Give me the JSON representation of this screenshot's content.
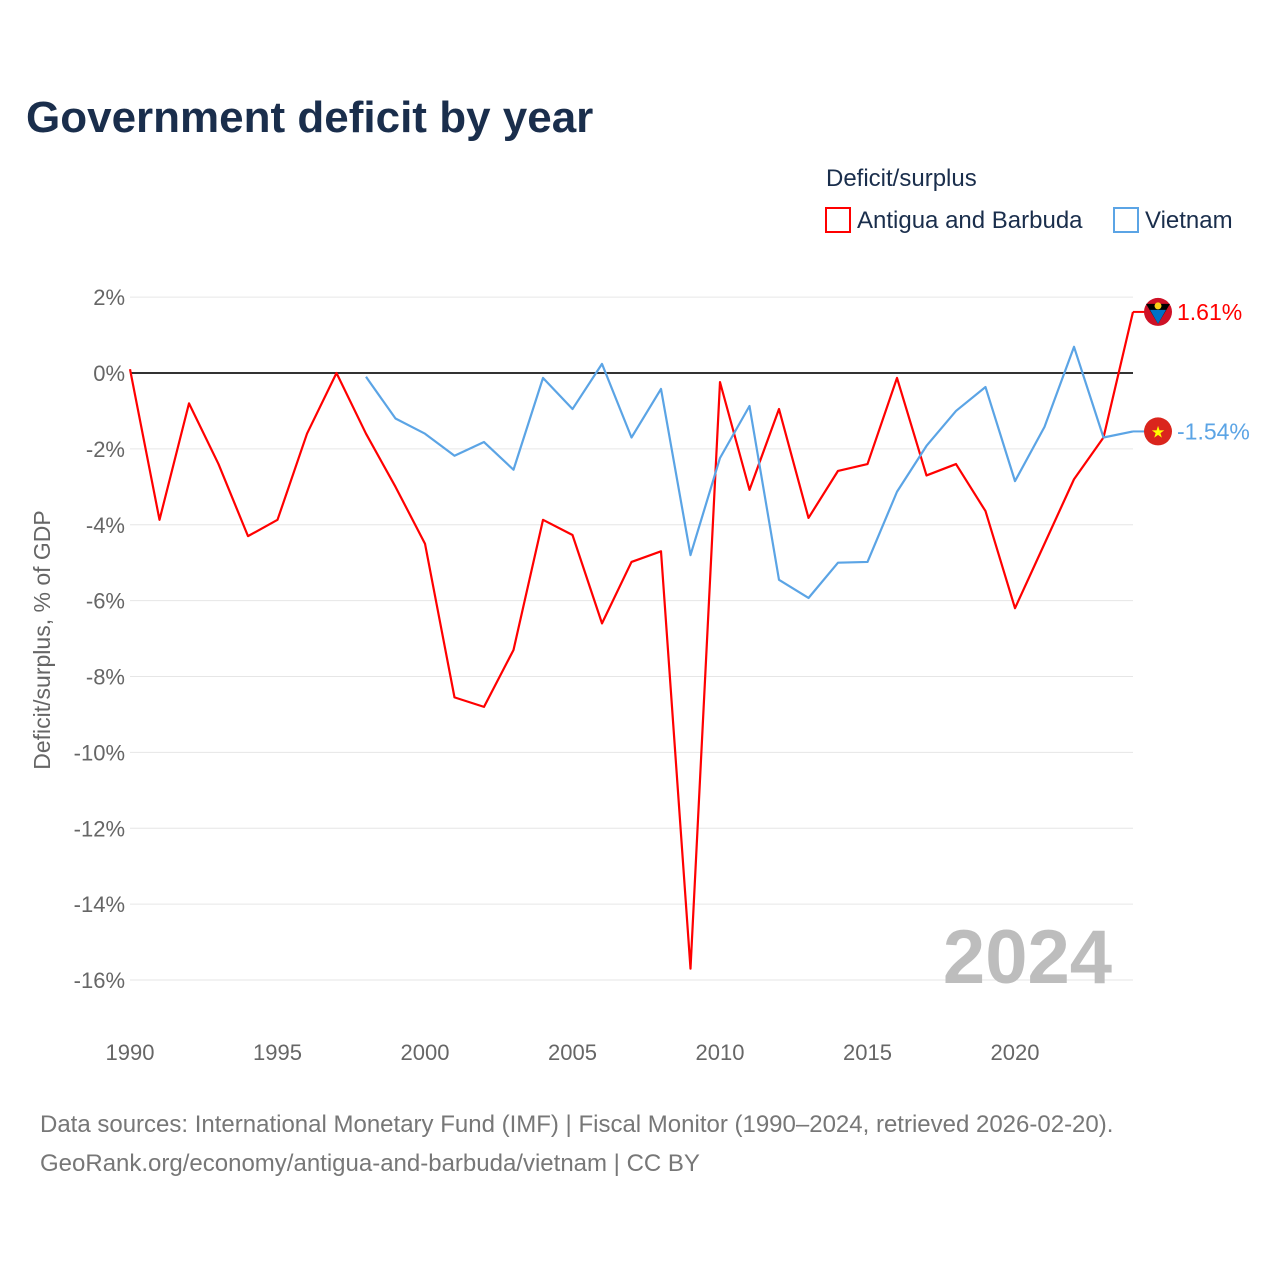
{
  "title": "Government deficit by year",
  "legend": {
    "title": "Deficit/surplus"
  },
  "source": {
    "line1": "Data sources: International Monetary Fund (IMF) | Fiscal Monitor (1990–2024, retrieved 2026-02-20).",
    "line2": "GeoRank.org/economy/antigua-and-barbuda/vietnam | CC BY"
  },
  "year_watermark": "2024",
  "chart_data": {
    "type": "line",
    "title": "Government deficit by year",
    "xlabel": "",
    "ylabel": "Deficit/surplus, % of GDP",
    "xlim": [
      1990,
      2024
    ],
    "ylim": [
      -17,
      2
    ],
    "xticks": [
      1990,
      1995,
      2000,
      2005,
      2010,
      2015,
      2020
    ],
    "yticks": [
      2,
      0,
      -2,
      -4,
      -6,
      -8,
      -10,
      -12,
      -14,
      -16
    ],
    "ytick_labels": [
      "2%",
      "0%",
      "-2%",
      "-4%",
      "-6%",
      "-8%",
      "-10%",
      "-12%",
      "-14%",
      "-16%"
    ],
    "grid": true,
    "legend_position": "top-right",
    "series": [
      {
        "name": "Antigua and Barbuda",
        "color": "#ff0000",
        "end_label": "1.61%",
        "x": [
          1990,
          1991,
          1992,
          1993,
          1994,
          1995,
          1996,
          1997,
          1998,
          1999,
          2000,
          2001,
          2002,
          2003,
          2004,
          2005,
          2006,
          2007,
          2008,
          2009,
          2010,
          2011,
          2012,
          2013,
          2014,
          2015,
          2016,
          2017,
          2018,
          2019,
          2020,
          2021,
          2022,
          2023,
          2024
        ],
        "values": [
          0.1,
          -3.87,
          -0.8,
          -2.4,
          -4.3,
          -3.87,
          -1.6,
          0,
          -1.6,
          -3.0,
          -4.5,
          -8.55,
          -8.8,
          -7.3,
          -3.87,
          -4.27,
          -6.6,
          -4.98,
          -4.7,
          -15.7,
          -0.24,
          -3.08,
          -0.95,
          -3.82,
          -2.58,
          -2.4,
          -0.13,
          -2.7,
          -2.4,
          -3.64,
          -6.2,
          -4.5,
          -2.8,
          -1.7,
          1.61
        ]
      },
      {
        "name": "Vietnam",
        "color": "#5ba4e5",
        "end_label": "-1.54%",
        "x": [
          1998,
          1999,
          2000,
          2001,
          2002,
          2003,
          2004,
          2005,
          2006,
          2007,
          2008,
          2009,
          2010,
          2011,
          2012,
          2013,
          2014,
          2015,
          2016,
          2017,
          2018,
          2019,
          2020,
          2021,
          2022,
          2023,
          2024
        ],
        "values": [
          -0.1,
          -1.2,
          -1.6,
          -2.18,
          -1.82,
          -2.55,
          -0.13,
          -0.95,
          0.24,
          -1.7,
          -0.42,
          -4.8,
          -2.24,
          -0.87,
          -5.45,
          -5.93,
          -5.0,
          -4.98,
          -3.13,
          -1.92,
          -1.0,
          -0.37,
          -2.85,
          -1.42,
          0.69,
          -1.7,
          -1.54
        ]
      }
    ]
  }
}
